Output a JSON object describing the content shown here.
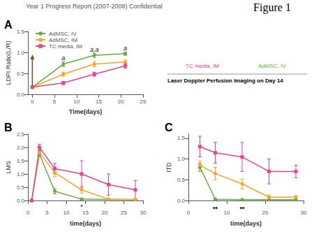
{
  "title": "Year 1 Progress Report (2007-2008) Confidential",
  "figure_label": "Figure 1",
  "image_labels": [
    {
      "text": "TC media, IM",
      "color": "#e84393"
    },
    {
      "text": "AdMSC, IV",
      "color": "#6aaa3a"
    }
  ],
  "caption": "Laser Doppler Perfusion Imaging on Day 14",
  "chart_data": [
    {
      "type": "line",
      "label": "A",
      "xlabel": "Time(days)",
      "ylabel": "LDPI Ratio(L/R)",
      "xlim": [
        -1,
        25
      ],
      "ylim": [
        0.0,
        1.5
      ],
      "xticks": [
        0,
        5,
        10,
        15,
        20,
        25
      ],
      "yticks": [
        {
          "value": 0.0,
          "label": "0.0"
        },
        0.5,
        {
          "value": 1.0,
          "label": "1.0"
        },
        1.5
      ],
      "grid": false,
      "legend": "upper left",
      "series": [
        {
          "name": "AdMSC, IV",
          "color": "#6aaa3a",
          "marker": "circle",
          "x": [
            0,
            7,
            14,
            21
          ],
          "values": [
            0.17,
            0.72,
            0.93,
            0.97
          ],
          "errors": [
            0.02,
            0.06,
            0.05,
            0.04
          ]
        },
        {
          "name": "AdMSC, IM",
          "color": "#f5a623",
          "marker": "circle",
          "x": [
            0,
            7,
            14,
            21
          ],
          "values": [
            0.17,
            0.48,
            0.72,
            0.77
          ],
          "errors": [
            0.02,
            0.05,
            0.06,
            0.05
          ]
        },
        {
          "name": "TC media, IM",
          "color": "#e84393",
          "marker": "square",
          "x": [
            0,
            7,
            14,
            21
          ],
          "values": [
            0.17,
            0.27,
            0.48,
            0.68
          ],
          "errors": [
            0.02,
            0.04,
            0.05,
            0.06
          ]
        }
      ],
      "annotations": [
        {
          "text": "a",
          "x": 7,
          "y": 0.8,
          "style": "italic"
        },
        {
          "text": "a,a",
          "x": 14,
          "y": 1.0,
          "style": "italic"
        },
        {
          "text": "a",
          "x": 21,
          "y": 1.03,
          "style": "italic"
        }
      ],
      "arrows": [
        {
          "x": 0,
          "y_start": 0.2,
          "y_end": 0.95,
          "color": "#8B4513"
        }
      ]
    },
    {
      "type": "line",
      "label": "B",
      "xlabel": "time(days)",
      "ylabel": "LMS",
      "xlim": [
        0,
        30
      ],
      "ylim": [
        0.0,
        2.5
      ],
      "xticks": [
        0,
        5,
        10,
        15,
        20,
        25,
        30
      ],
      "yticks": [
        {
          "value": 0.0,
          "label": "0.0"
        },
        0.5,
        {
          "value": 1.0,
          "label": "1.0"
        },
        1.5,
        {
          "value": 2.0,
          "label": "2.0"
        },
        2.5
      ],
      "grid": false,
      "series": [
        {
          "name": "AdMSC, IV",
          "color": "#6aaa3a",
          "marker": "circle",
          "x": [
            1,
            3,
            7,
            14,
            21,
            28
          ],
          "values": [
            0.0,
            1.75,
            0.35,
            0.05,
            0.04,
            0.03
          ],
          "errors": [
            0.0,
            0.1,
            0.1,
            0.03,
            0.02,
            0.02
          ]
        },
        {
          "name": "AdMSC, IM",
          "color": "#f5a623",
          "marker": "circle",
          "x": [
            1,
            3,
            7,
            14,
            21,
            28
          ],
          "values": [
            0.0,
            1.8,
            1.05,
            0.4,
            0.05,
            0.04
          ],
          "errors": [
            0.0,
            0.08,
            0.15,
            0.12,
            0.03,
            0.02
          ]
        },
        {
          "name": "TC media, IM",
          "color": "#e84393",
          "marker": "square",
          "x": [
            1,
            3,
            7,
            14,
            21,
            28
          ],
          "values": [
            0.0,
            2.0,
            1.2,
            1.0,
            0.6,
            0.4
          ],
          "errors": [
            0.0,
            0.12,
            0.2,
            0.5,
            0.4,
            0.35
          ]
        }
      ],
      "annotations": [
        {
          "text": "*",
          "x": 14,
          "y": -0.12
        }
      ]
    },
    {
      "type": "line",
      "label": "C",
      "xlabel": "time(days)",
      "ylabel": "ITD",
      "xlim": [
        0,
        30
      ],
      "ylim": [
        0.0,
        1.6
      ],
      "xticks": [
        0,
        10,
        20,
        30
      ],
      "yticks": [
        {
          "value": 0.0,
          "label": "0.0"
        },
        0.5,
        {
          "value": 1.0,
          "label": "1.0"
        },
        1.5
      ],
      "grid": false,
      "series": [
        {
          "name": "AdMSC, IV",
          "color": "#6aaa3a",
          "marker": "circle",
          "x": [
            3,
            7,
            14,
            21,
            28
          ],
          "values": [
            0.8,
            0.03,
            0.02,
            0.02,
            0.02
          ],
          "errors": [
            0.1,
            0.02,
            0.01,
            0.01,
            0.01
          ]
        },
        {
          "name": "AdMSC, IM",
          "color": "#f5a623",
          "marker": "circle",
          "x": [
            3,
            7,
            14,
            21,
            28
          ],
          "values": [
            0.85,
            0.65,
            0.4,
            0.08,
            0.08
          ],
          "errors": [
            0.1,
            0.15,
            0.12,
            0.05,
            0.04
          ]
        },
        {
          "name": "TC media, IM",
          "color": "#e84393",
          "marker": "square",
          "x": [
            3,
            7,
            14,
            21,
            28
          ],
          "values": [
            1.3,
            1.15,
            1.05,
            0.7,
            0.7
          ],
          "errors": [
            0.25,
            0.25,
            0.35,
            0.3,
            0.15
          ]
        }
      ],
      "annotations": [
        {
          "text": "**",
          "x": 7,
          "y": -0.12,
          "style": "bold"
        },
        {
          "text": "**",
          "x": 14,
          "y": -0.12,
          "style": "bold"
        }
      ]
    }
  ]
}
